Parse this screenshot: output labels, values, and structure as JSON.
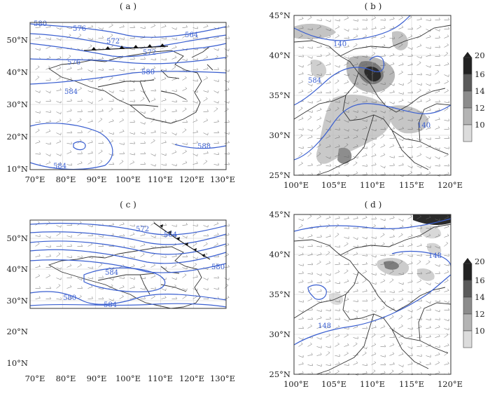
{
  "panels": [
    {
      "label": "( a )",
      "xticks": [
        "70°E",
        "80°E",
        "90°E",
        "100°E",
        "110°E",
        "120°E",
        "130°E"
      ],
      "yticks": [
        "50°N",
        "40°N",
        "30°N",
        "20°N",
        "10°N"
      ],
      "contour_labels": [
        "580",
        "576",
        "572",
        "564",
        "572",
        "576",
        "580",
        "584",
        "584",
        "588"
      ]
    },
    {
      "label": "( b )",
      "xticks": [
        "100°E",
        "105°E",
        "110°E",
        "115°E",
        "120°E"
      ],
      "yticks": [
        "45°N",
        "40°N",
        "35°N",
        "30°N",
        "25°N"
      ],
      "contour_labels": [
        "140",
        "584",
        "140"
      ]
    },
    {
      "label": "( c )",
      "xticks": [
        "70°E",
        "80°E",
        "90°E",
        "100°E",
        "110°E",
        "120°E",
        "130°E"
      ],
      "yticks": [
        "50°N",
        "40°N",
        "30°N",
        "20°N",
        "10°N"
      ],
      "contour_labels": [
        "572",
        "564",
        "580",
        "584",
        "580",
        "584"
      ]
    },
    {
      "label": "( d )",
      "xticks": [
        "100°E",
        "105°E",
        "110°E",
        "115°E",
        "120°E"
      ],
      "yticks": [
        "45°N",
        "40°N",
        "35°N",
        "30°N",
        "25°N"
      ],
      "contour_labels": [
        "148",
        "148"
      ]
    }
  ],
  "colorbar": {
    "ticks": [
      "20",
      "16",
      "14",
      "12",
      "10"
    ],
    "colors": [
      "#222222",
      "#5a5a5a",
      "#8c8c8c",
      "#b4b4b4",
      "#dcdcdc"
    ]
  }
}
